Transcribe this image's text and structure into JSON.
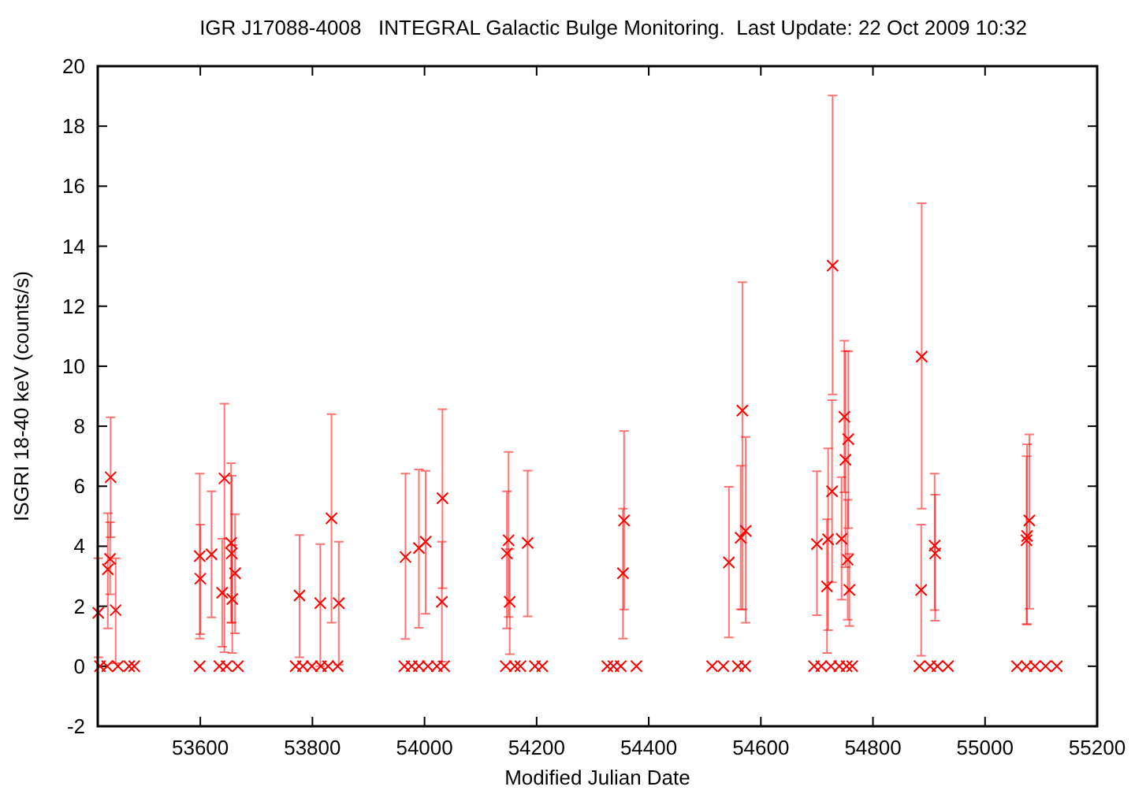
{
  "chart_data": {
    "type": "scatter",
    "title": "IGR J17088-4008   INTEGRAL Galactic Bulge Monitoring.  Last Update: 22 Oct 2009 10:32",
    "xlabel": "Modified Julian Date",
    "ylabel": "ISGRI 18-40 keV (counts/s)",
    "xlim": [
      53417,
      55200
    ],
    "xticks": [
      53600,
      53800,
      54000,
      54200,
      54400,
      54600,
      54800,
      55000,
      55200
    ],
    "ylim": [
      -2,
      20
    ],
    "yticks": [
      -2,
      0,
      2,
      4,
      6,
      8,
      10,
      12,
      14,
      16,
      18,
      20
    ],
    "grid": false,
    "marker": "cross",
    "series": [
      {
        "color": "#ff0000",
        "x": [
          53418,
          53435,
          53439,
          53440,
          53449,
          53599,
          53600,
          53620,
          53643,
          53639,
          53655,
          53656,
          53657,
          53662,
          53777,
          53814,
          53834,
          53847,
          53966,
          53990,
          54002,
          54032,
          54031,
          54150,
          54147,
          54152,
          54184,
          54356,
          54354,
          54543,
          54567,
          54564,
          54573,
          54700,
          54718,
          54720,
          54728,
          54727,
          54744,
          54749,
          54756,
          54751,
          54755,
          54758,
          54887,
          54886,
          54910,
          54911,
          55075,
          55074,
          55079,
          53421,
          53434,
          53453,
          53473,
          53482,
          53599,
          53634,
          53647,
          53667,
          53770,
          53783,
          53799,
          53815,
          53828,
          53845,
          53964,
          53977,
          53990,
          54006,
          54022,
          54035,
          54145,
          54161,
          54171,
          54197,
          54210,
          54326,
          54337,
          54350,
          54378,
          54513,
          54533,
          54559,
          54572,
          54695,
          54708,
          54725,
          54740,
          54753,
          54763,
          54883,
          54902,
          54915,
          54934,
          55057,
          55074,
          55089,
          55108,
          55128
        ],
        "values": [
          1.78,
          3.23,
          3.58,
          6.3,
          1.87,
          3.67,
          2.92,
          3.73,
          6.26,
          2.45,
          4.11,
          3.76,
          2.24,
          3.1,
          2.36,
          2.1,
          4.93,
          2.1,
          3.64,
          3.94,
          4.15,
          5.6,
          2.15,
          4.2,
          3.76,
          2.15,
          4.11,
          4.86,
          3.1,
          3.46,
          8.52,
          4.28,
          4.51,
          4.07,
          2.66,
          4.23,
          13.35,
          5.83,
          4.25,
          8.31,
          7.57,
          6.88,
          3.55,
          2.54,
          10.32,
          2.54,
          4.02,
          3.76,
          4.34,
          4.2,
          4.86,
          0,
          0,
          0,
          0,
          0,
          0,
          0,
          0,
          0,
          0,
          0,
          0,
          0,
          0,
          0,
          0,
          0,
          0,
          0,
          0,
          0,
          0,
          0,
          0,
          0,
          0,
          0,
          0,
          0,
          0,
          0,
          0,
          0,
          0,
          0,
          0,
          0,
          0,
          0,
          0,
          0,
          0,
          0,
          0,
          0,
          0,
          0,
          0,
          0
        ],
        "errors": [
          [
            0.3,
            3.6
          ],
          [
            1.26,
            5.1
          ],
          [
            2.4,
            4.8
          ],
          [
            4.3,
            8.3
          ],
          [
            0.1,
            3.6
          ],
          [
            0.92,
            6.42
          ],
          [
            1.07,
            4.72
          ],
          [
            1.63,
            5.83
          ],
          [
            0.47,
            8.75
          ],
          [
            0.65,
            4.25
          ],
          [
            1.45,
            6.77
          ],
          [
            1.45,
            6.35
          ],
          [
            0.44,
            4.04
          ],
          [
            1.1,
            5.07
          ],
          [
            0.3,
            4.37
          ],
          [
            0,
            4.07
          ],
          [
            1.45,
            8.4
          ],
          [
            0.05,
            4.15
          ],
          [
            0.91,
            6.42
          ],
          [
            1.28,
            6.56
          ],
          [
            1.75,
            6.51
          ],
          [
            2.6,
            8.57
          ],
          [
            0.15,
            4.15
          ],
          [
            1.64,
            7.14
          ],
          [
            1.26,
            5.83
          ],
          [
            0.4,
            3.9
          ],
          [
            1.66,
            6.52
          ],
          [
            1.89,
            7.84
          ],
          [
            0.92,
            5.25
          ],
          [
            0.96,
            5.98
          ],
          [
            1.89,
            12.8
          ],
          [
            1.9,
            6.68
          ],
          [
            1.45,
            7.64
          ],
          [
            1.7,
            6.5
          ],
          [
            0.44,
            4.9
          ],
          [
            1.2,
            7.26
          ],
          [
            9.06,
            19.02
          ],
          [
            2.8,
            8.87
          ],
          [
            2.22,
            6.3
          ],
          [
            5.8,
            10.85
          ],
          [
            4.6,
            10.5
          ],
          [
            3.3,
            10.5
          ],
          [
            1.55,
            5.55
          ],
          [
            1.34,
            3.74
          ],
          [
            5.25,
            15.43
          ],
          [
            0.35,
            4.72
          ],
          [
            1.87,
            6.42
          ],
          [
            1.52,
            5.72
          ],
          [
            1.4,
            7.4
          ],
          [
            1.4,
            7.0
          ],
          [
            1.92,
            7.73
          ],
          null,
          null,
          null,
          null,
          null,
          null,
          null,
          null,
          null,
          null,
          null,
          null,
          null,
          null,
          null,
          null,
          null,
          null,
          null,
          null,
          null,
          null,
          null,
          null,
          null,
          null,
          null,
          null,
          null,
          null,
          null,
          null,
          null,
          null,
          null,
          null,
          null,
          null,
          null,
          null,
          null,
          null,
          null,
          null,
          null,
          null,
          null,
          null,
          null
        ]
      }
    ]
  }
}
